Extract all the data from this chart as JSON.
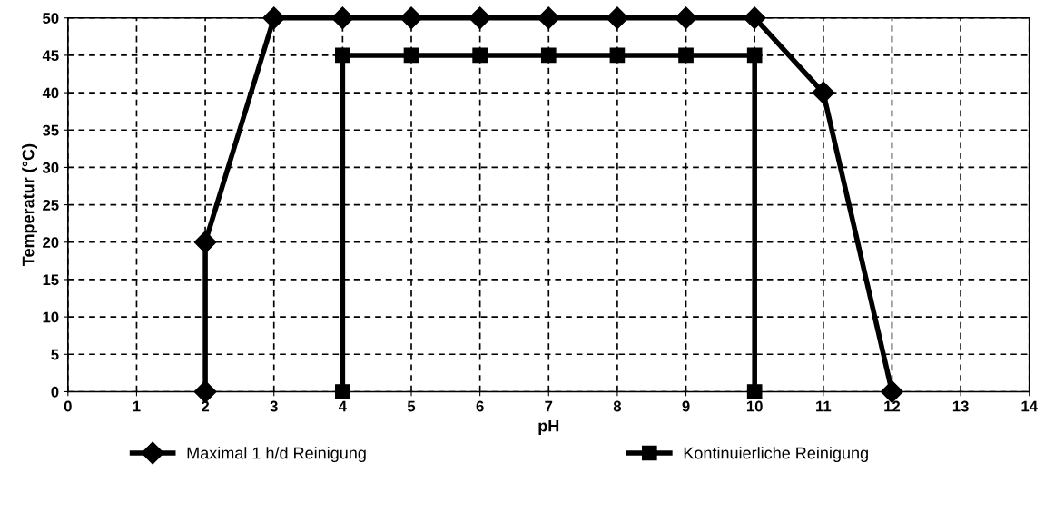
{
  "chart_data": {
    "type": "line",
    "xlabel": "pH",
    "ylabel": "Temperatur (°C)",
    "xlim": [
      0,
      14
    ],
    "xticks": [
      0,
      1,
      2,
      3,
      4,
      5,
      6,
      7,
      8,
      9,
      10,
      11,
      12,
      13,
      14
    ],
    "ylim": [
      0,
      50
    ],
    "yticks": [
      0,
      5,
      10,
      15,
      20,
      25,
      30,
      35,
      40,
      45,
      50
    ],
    "grid": true,
    "legend": "bottom",
    "line_style": "solid",
    "series": [
      {
        "name": "Maximal 1 h/d Reinigung",
        "color": "#000000",
        "marker": "diamond",
        "x": [
          2,
          2,
          3,
          4,
          5,
          6,
          7,
          8,
          9,
          10,
          11,
          12
        ],
        "values": [
          0,
          20,
          50,
          50,
          50,
          50,
          50,
          50,
          50,
          50,
          40,
          0
        ]
      },
      {
        "name": "Kontinuierliche Reinigung",
        "color": "#000000",
        "marker": "square",
        "x": [
          4,
          4,
          5,
          6,
          7,
          8,
          9,
          10,
          10
        ],
        "values": [
          0,
          45,
          45,
          45,
          45,
          45,
          45,
          45,
          0
        ]
      }
    ]
  }
}
